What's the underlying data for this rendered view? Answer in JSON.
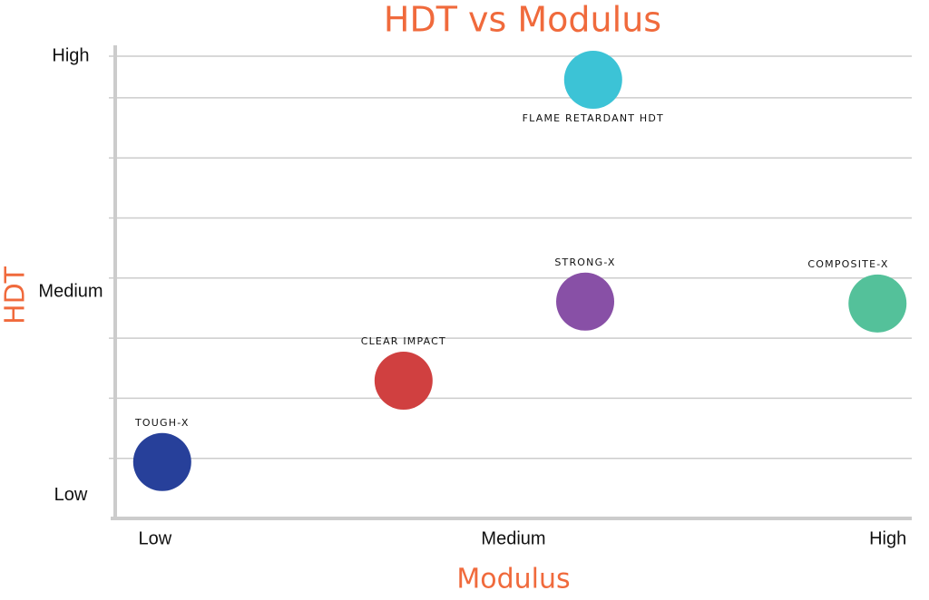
{
  "chart_data": {
    "type": "scatter",
    "title": "HDT vs Modulus",
    "x_label": "Modulus",
    "y_label": "HDT",
    "labels": [
      "TOUGH-X",
      "CLEAR IMPACT",
      "STRONG-X",
      "FLAME RETARDANT HDT",
      "COMPOSITE-X"
    ],
    "x": [
      5.9,
      36.2,
      59.0,
      60.0,
      95.7
    ],
    "values": [
      12.2,
      29.8,
      46.9,
      94.9,
      46.5
    ],
    "colors": [
      "#27409a",
      "#d04040",
      "#8850a6",
      "#3cc3d6",
      "#54c19a"
    ],
    "xlim": [
      0,
      100
    ],
    "ylim": [
      0,
      100
    ],
    "xticks": [
      {
        "value": 5,
        "label": "Low"
      },
      {
        "value": 50,
        "label": "Medium"
      },
      {
        "value": 97,
        "label": "High"
      }
    ],
    "yticks": [
      {
        "value": 5,
        "label": "Low"
      },
      {
        "value": 49,
        "label": "Medium"
      },
      {
        "value": 100,
        "label": "High"
      }
    ],
    "ygrid": [
      13,
      26,
      39,
      52,
      65,
      78,
      91,
      100
    ],
    "grid": true
  }
}
